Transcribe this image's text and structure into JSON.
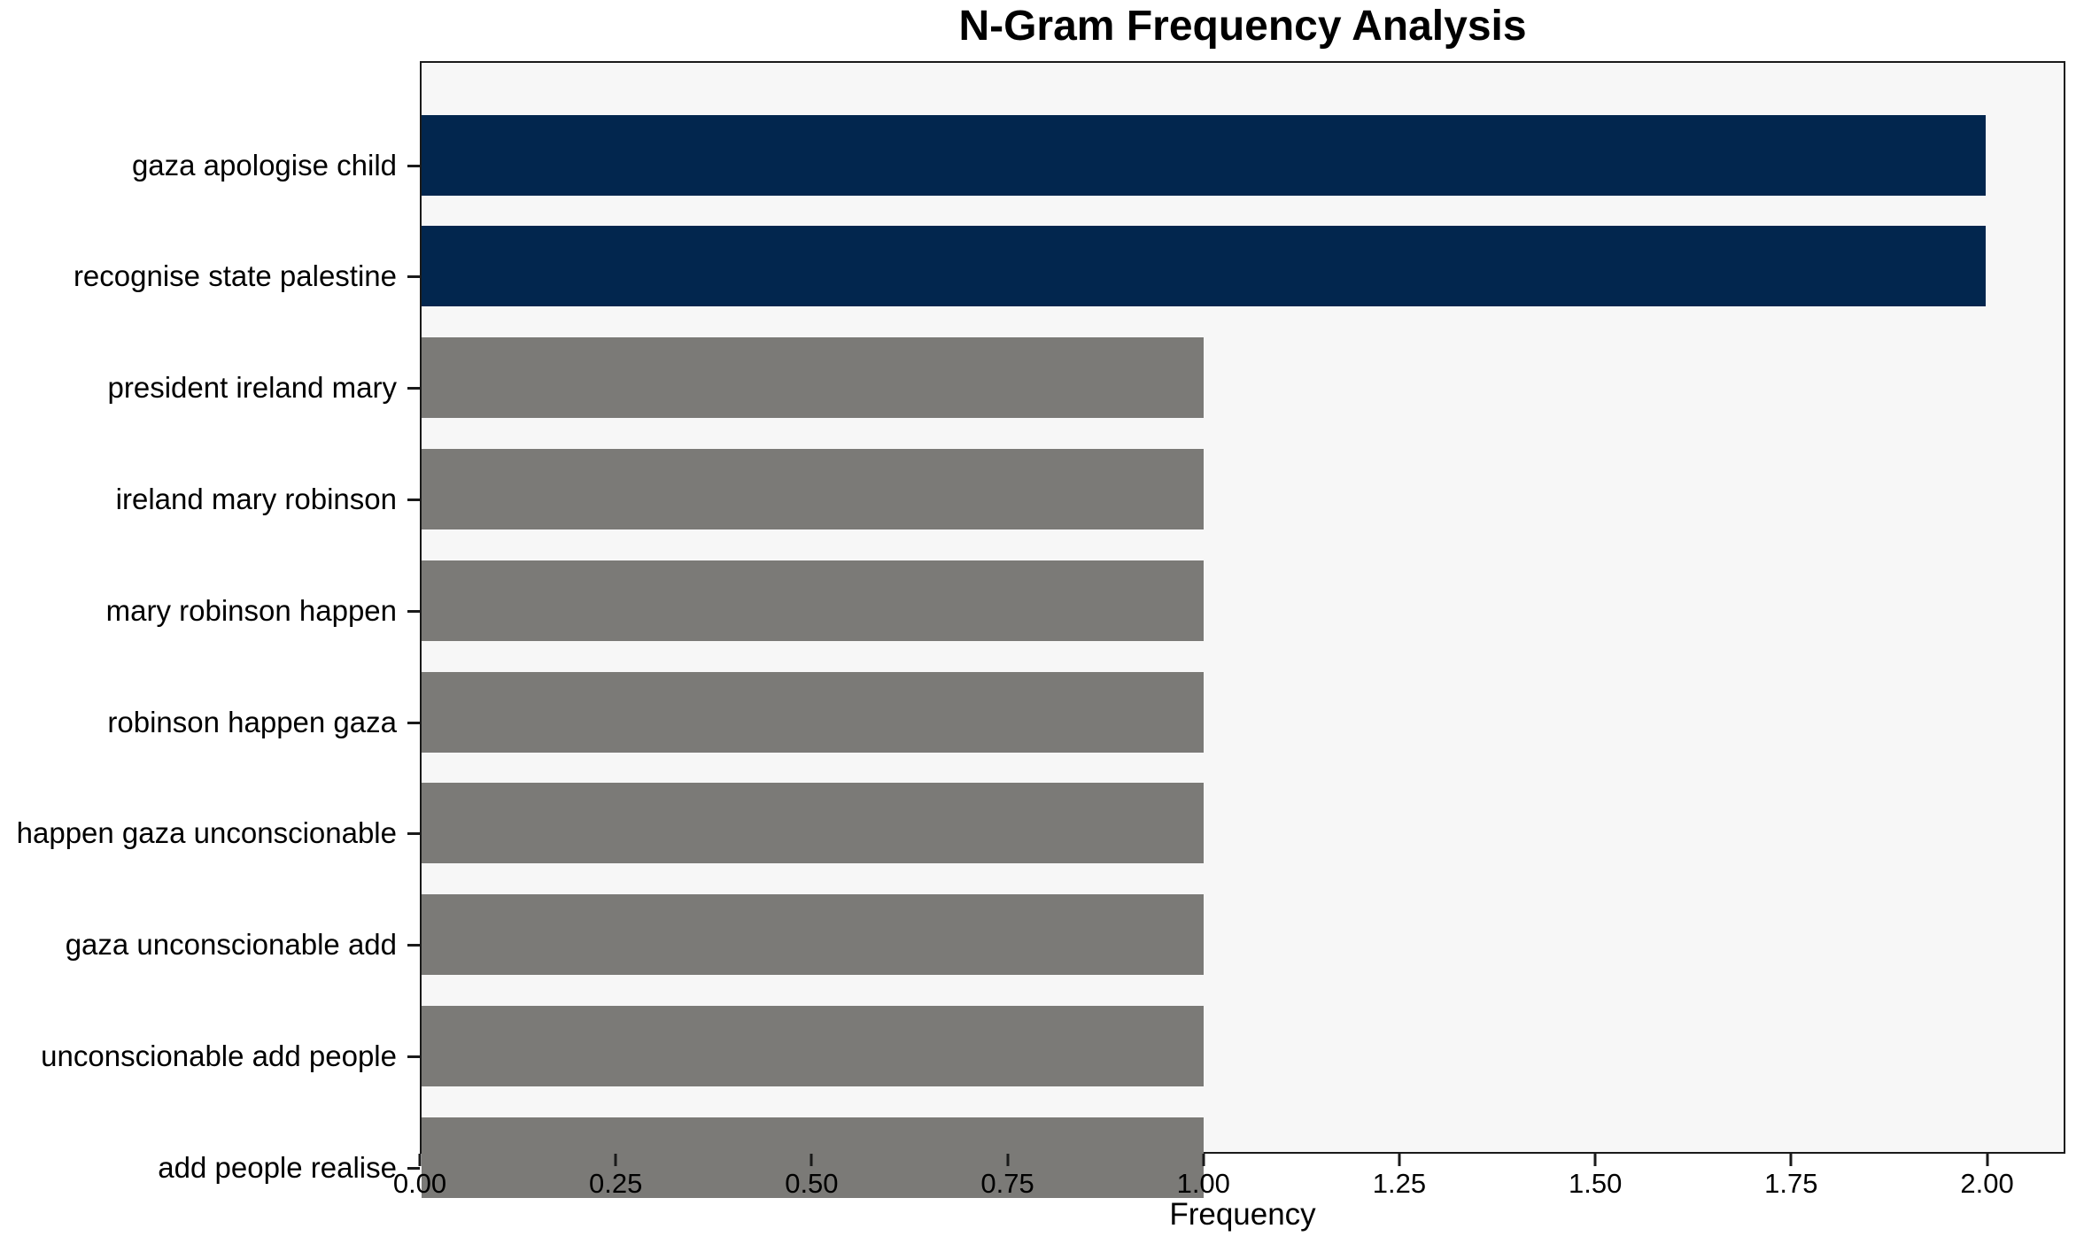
{
  "figure": {
    "background": "#ffffff"
  },
  "chart_data": {
    "type": "bar",
    "orientation": "horizontal",
    "title": "N-Gram Frequency Analysis",
    "xlabel": "Frequency",
    "ylabel": "",
    "categories": [
      "gaza apologise child",
      "recognise state palestine",
      "president ireland mary",
      "ireland mary robinson",
      "mary robinson happen",
      "robinson happen gaza",
      "happen gaza unconscionable",
      "gaza unconscionable add",
      "unconscionable add people",
      "add people realise"
    ],
    "values": [
      2,
      2,
      1,
      1,
      1,
      1,
      1,
      1,
      1,
      1
    ],
    "bar_colors": [
      "#02264e",
      "#02264e",
      "#7b7a77",
      "#7b7a77",
      "#7b7a77",
      "#7b7a77",
      "#7b7a77",
      "#7b7a77",
      "#7b7a77",
      "#7b7a77"
    ],
    "highlight_color": "#02264e",
    "default_color": "#7b7a77",
    "xlim": [
      0,
      2.1
    ],
    "xticks": [
      0,
      0.25,
      0.5,
      0.75,
      1.0,
      1.25,
      1.5,
      1.75,
      2.0
    ],
    "xtick_labels": [
      "0.00",
      "0.25",
      "0.50",
      "0.75",
      "1.00",
      "1.25",
      "1.50",
      "1.75",
      "2.00"
    ],
    "grid": false,
    "legend": null,
    "plot_background": "#f7f7f7",
    "axis_color": "#1a1a1a",
    "bar_height_fraction": 0.8
  }
}
